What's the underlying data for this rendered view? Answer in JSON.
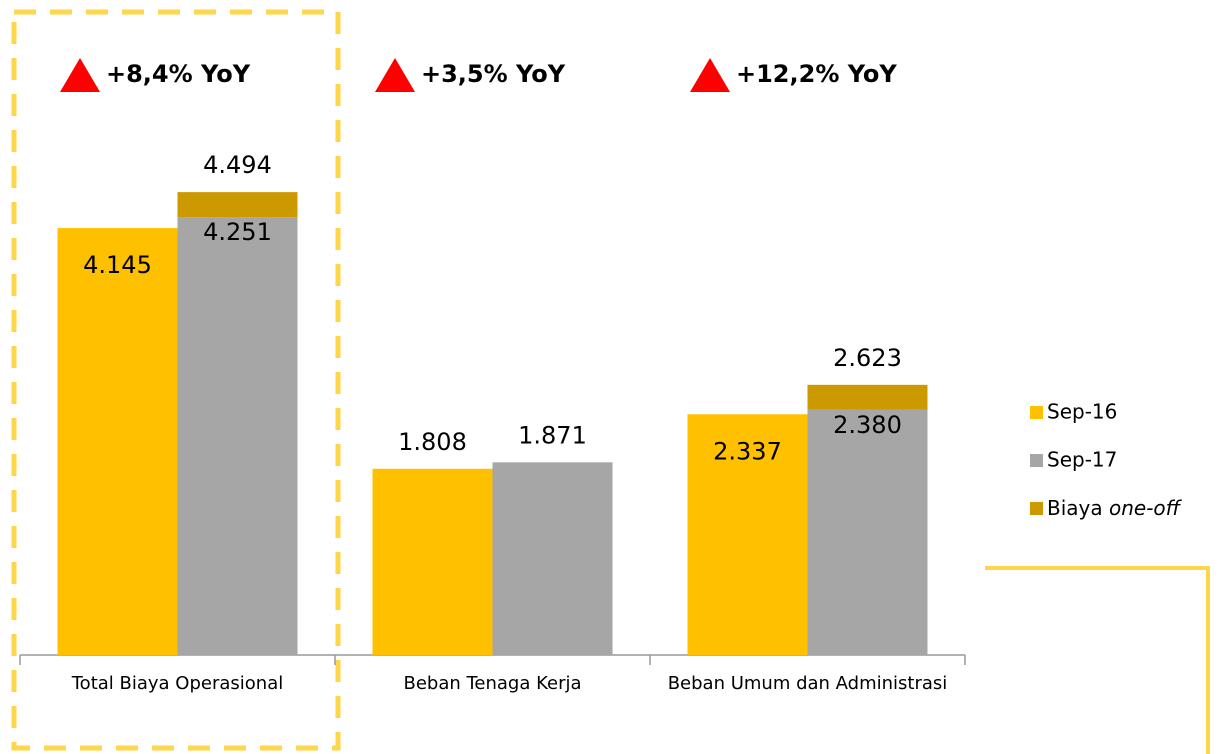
{
  "chart_data": {
    "type": "bar",
    "categories": [
      "Total Biaya Operasional",
      "Beban Tenaga Kerja",
      "Beban Umum dan Administrasi"
    ],
    "series": [
      {
        "name": "Sep-16",
        "color": "#FFC000",
        "values": [
          4145,
          1808,
          2337
        ],
        "value_labels": [
          "4.145",
          "1.808",
          "2.337"
        ]
      },
      {
        "name": "Sep-17",
        "color": "#A6A6A6",
        "values": [
          4251,
          1871,
          2380
        ],
        "value_labels": [
          "4.251",
          "1.871",
          "2.380"
        ]
      },
      {
        "name": "Biaya one-off",
        "color": "#CC9900",
        "values": [
          243,
          null,
          243
        ]
      }
    ],
    "total_labels": [
      "4.494",
      null,
      "2.623"
    ],
    "annotations": [
      "+8,4% YoY",
      "+3,5% YoY",
      "+12,2% YoY"
    ],
    "ylim": [
      0,
      5000
    ],
    "legend": "right"
  }
}
